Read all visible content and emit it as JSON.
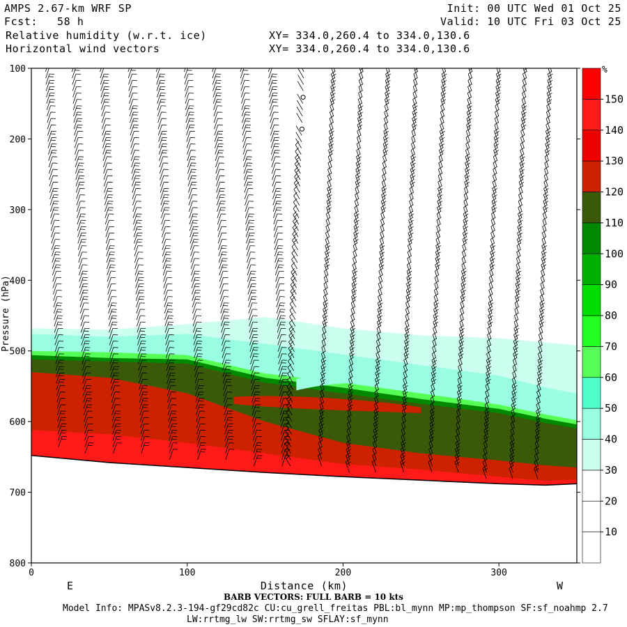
{
  "header": {
    "model": "AMPS 2.67-km WRF SP",
    "fcst_label": "Fcst:",
    "fcst_value": "58 h",
    "field1": "Relative humidity (w.r.t. ice)",
    "field2": "Horizontal wind vectors",
    "xy1": "XY= 334.0,260.4 to 334.0,130.6",
    "xy2": "XY= 334.0,260.4 to 334.0,130.6",
    "init": "Init: 00 UTC Wed 01 Oct 25",
    "valid": "Valid: 10 UTC Fri 03 Oct 25"
  },
  "footer": {
    "barb_note": "BARB VECTORS:  FULL BARB = 10 kts",
    "model_info": "Model Info: MPASv8.2.3-194-gf29cd82c CU:cu_grell_freitas PBL:bl_mynn MP:mp_thompson SF:sf_noahmp 2.7",
    "model_info2": "LW:rrtmg_lw SW:rrtmg_sw SFLAY:sf_mynn"
  },
  "colors": {
    "c10": "#ffffff",
    "c20": "#ffffff",
    "c30": "#ccfff0",
    "c40": "#99ffe0",
    "c50": "#4dffc8",
    "c60": "#55ff55",
    "c70": "#22ff22",
    "c80": "#00dd00",
    "c90": "#00b000",
    "c100": "#008800",
    "c110": "#3a5a0a",
    "c120": "#cc2200",
    "c130": "#ee0000",
    "c140": "#ff1a1a",
    "c150": "#ff0000",
    "terrain": "#ffffff"
  },
  "chart_data": {
    "type": "cross-section",
    "title": "Relative humidity (w.r.t. ice) and horizontal wind vectors",
    "xlabel": "Distance (km)",
    "ylabel": "Pressure (hPa)",
    "xlim": [
      0,
      350
    ],
    "ylim": [
      800,
      100
    ],
    "x_ticks": [
      0,
      100,
      200,
      300
    ],
    "y_ticks": [
      100,
      200,
      300,
      400,
      500,
      600,
      700,
      800
    ],
    "left_end_label": "E",
    "right_end_label": "W",
    "colorbar": {
      "unit": "%",
      "levels": [
        10,
        20,
        30,
        40,
        50,
        60,
        70,
        80,
        90,
        100,
        110,
        120,
        130,
        140,
        150
      ],
      "colors": [
        "#ffffff",
        "#ffffff",
        "#ffffff",
        "#ccfff0",
        "#99ffe0",
        "#4dffc8",
        "#55ff55",
        "#22ff22",
        "#00dd00",
        "#00b000",
        "#008800",
        "#3a5a0a",
        "#cc2200",
        "#ee0000",
        "#ff1a1a",
        "#ff0000"
      ]
    },
    "terrain_surface_hpa": {
      "x_km": [
        0,
        50,
        100,
        150,
        200,
        250,
        300,
        330,
        350
      ],
      "p": [
        648,
        658,
        665,
        672,
        678,
        683,
        688,
        690,
        688
      ]
    },
    "rh_layers": [
      {
        "level": 30,
        "top": [
          468,
          470,
          462,
          452,
          468,
          478,
          482,
          488,
          492
        ]
      },
      {
        "level": 40,
        "top": [
          476,
          480,
          476,
          490,
          505,
          520,
          535,
          552,
          560
        ]
      },
      {
        "level": 60,
        "top": [
          500,
          502,
          506,
          532,
          545,
          560,
          576,
          590,
          598
        ]
      },
      {
        "level": 100,
        "top": [
          506,
          510,
          512,
          538,
          552,
          568,
          582,
          596,
          604
        ]
      },
      {
        "level": 110,
        "top": [
          512,
          515,
          518,
          545,
          560,
          575,
          588,
          602,
          610
        ]
      },
      {
        "level": 120,
        "top": [
          530,
          538,
          560,
          600,
          630,
          645,
          655,
          662,
          665
        ]
      },
      {
        "level": 140,
        "top": [
          612,
          618,
          630,
          645,
          660,
          668,
          678,
          684,
          682
        ]
      }
    ],
    "wind_columns_km": [
      9,
      26,
      44,
      62,
      80,
      98,
      116,
      134,
      152,
      175,
      195,
      213,
      230,
      248,
      266,
      283,
      301,
      318,
      334
    ]
  }
}
